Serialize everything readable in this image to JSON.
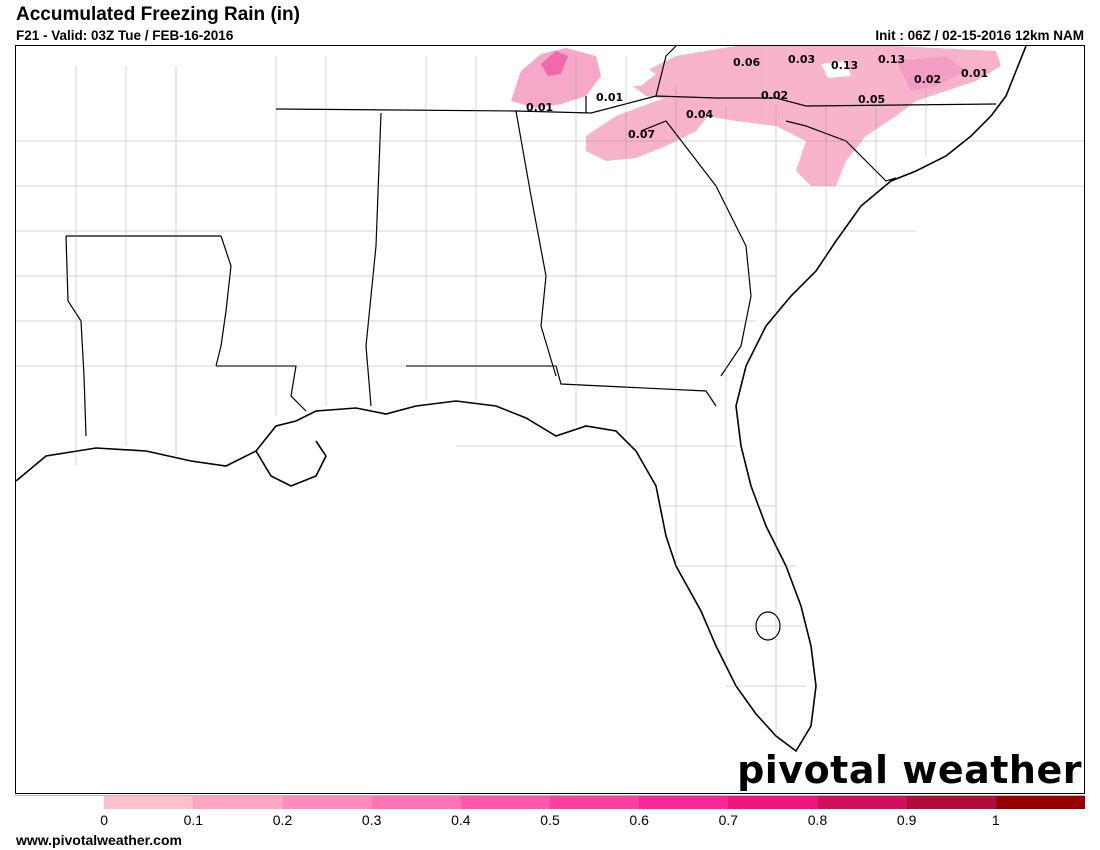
{
  "header": {
    "title": "Accumulated Freezing Rain (in)",
    "valid_line": "F21 - Valid: 03Z Tue / FEB-16-2016",
    "init_line": "Init : 06Z / 02-15-2016 12km NAM"
  },
  "map": {
    "contour_labels": [
      {
        "id": "lbl-1",
        "text": "0.01"
      },
      {
        "id": "lbl-2",
        "text": "0.01"
      },
      {
        "id": "lbl-3",
        "text": "0.07"
      },
      {
        "id": "lbl-4",
        "text": "0.04"
      },
      {
        "id": "lbl-5",
        "text": "0.06"
      },
      {
        "id": "lbl-6",
        "text": "0.03"
      },
      {
        "id": "lbl-7",
        "text": "0.13"
      },
      {
        "id": "lbl-8",
        "text": "0.13"
      },
      {
        "id": "lbl-9",
        "text": "0.02"
      },
      {
        "id": "lbl-10",
        "text": "0.01"
      },
      {
        "id": "lbl-11",
        "text": "0.02"
      },
      {
        "id": "lbl-12",
        "text": "0.05"
      }
    ]
  },
  "brand": {
    "text": "pivotal weather"
  },
  "legend": {
    "colors": [
      "#ffffff",
      "#ffc0cb",
      "#ffa6c3",
      "#ff8cbc",
      "#ff72b4",
      "#ff58ab",
      "#ff3ea2",
      "#ff2499",
      "#f0147f",
      "#d0105c",
      "#b00c3c",
      "#960000"
    ],
    "ticks": [
      "0",
      "0.1",
      "0.2",
      "0.3",
      "0.4",
      "0.5",
      "0.6",
      "0.7",
      "0.8",
      "0.9",
      "1"
    ]
  },
  "footer": {
    "url": "www.pivotalweather.com"
  }
}
